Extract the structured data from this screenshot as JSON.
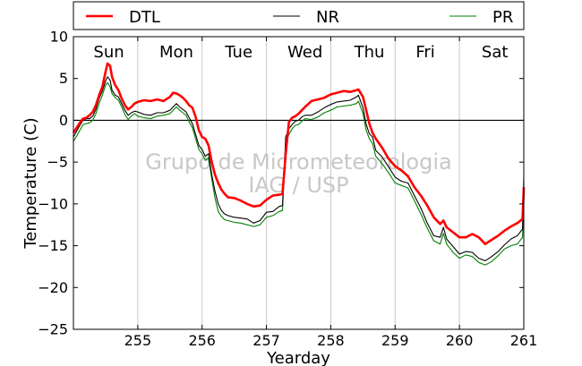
{
  "chart_data": {
    "type": "line",
    "xlabel": "Yearday",
    "ylabel": "Temperature (C)",
    "xlim": [
      254,
      261
    ],
    "ylim": [
      -25,
      10
    ],
    "xticks": [
      255,
      256,
      257,
      258,
      259,
      260,
      261
    ],
    "xtick_labels": [
      "255",
      "256",
      "257",
      "258",
      "259",
      "260",
      "261"
    ],
    "yticks": [
      -25,
      -20,
      -15,
      -10,
      -5,
      0,
      5,
      10
    ],
    "ytick_labels": [
      "−25",
      "−20",
      "−15",
      "−10",
      "−5",
      "0",
      "5",
      "10"
    ],
    "grid": "vertical",
    "zero_line": true,
    "legend": {
      "placement": "top",
      "entries": [
        "DTL",
        "NR",
        "PR"
      ]
    },
    "day_labels": [
      {
        "x": 254.55,
        "text": "Sun"
      },
      {
        "x": 255.6,
        "text": "Mon"
      },
      {
        "x": 256.57,
        "text": "Tue"
      },
      {
        "x": 257.6,
        "text": "Wed"
      },
      {
        "x": 258.6,
        "text": "Thu"
      },
      {
        "x": 259.47,
        "text": "Fri"
      },
      {
        "x": 260.55,
        "text": "Sat"
      }
    ],
    "watermark": [
      "Grupo de Micrometeorologia",
      "IAG / USP"
    ],
    "series": [
      {
        "name": "DTL",
        "color": "#ff0000",
        "x": [
          254,
          254.05,
          254.1,
          254.15,
          254.2,
          254.25,
          254.3,
          254.35,
          254.4,
          254.45,
          254.5,
          254.53,
          254.57,
          254.6,
          254.65,
          254.7,
          254.75,
          254.8,
          254.85,
          254.9,
          254.95,
          255,
          255.1,
          255.2,
          255.3,
          255.4,
          255.5,
          255.55,
          255.6,
          255.65,
          255.7,
          255.75,
          255.8,
          255.85,
          255.9,
          255.95,
          256,
          256.05,
          256.1,
          256.15,
          256.2,
          256.25,
          256.3,
          256.35,
          256.4,
          256.5,
          256.6,
          256.7,
          256.8,
          256.9,
          257,
          257.1,
          257.2,
          257.25,
          257.3,
          257.35,
          257.4,
          257.45,
          257.5,
          257.55,
          257.6,
          257.7,
          257.8,
          257.9,
          258,
          258.1,
          258.2,
          258.3,
          258.4,
          258.43,
          258.5,
          258.55,
          258.6,
          258.65,
          258.7,
          258.8,
          258.9,
          259,
          259.1,
          259.2,
          259.3,
          259.4,
          259.5,
          259.6,
          259.7,
          259.75,
          259.8,
          259.9,
          260,
          260.1,
          260.2,
          260.3,
          260.4,
          260.5,
          260.6,
          260.7,
          260.8,
          260.9,
          260.98,
          261
        ],
        "y": [
          -1.5,
          -0.9,
          -0.3,
          0.2,
          0.3,
          0.6,
          1.0,
          1.8,
          3.0,
          4.0,
          5.8,
          6.8,
          6.5,
          5.2,
          4.2,
          3.6,
          2.6,
          1.8,
          1.3,
          1.6,
          2.0,
          2.2,
          2.4,
          2.3,
          2.5,
          2.3,
          2.8,
          3.3,
          3.2,
          3.0,
          2.7,
          2.3,
          1.8,
          1.5,
          0.4,
          -1.2,
          -2.0,
          -2.2,
          -3.0,
          -5.0,
          -6.5,
          -7.5,
          -8.3,
          -8.8,
          -9.2,
          -9.3,
          -9.6,
          -10.0,
          -10.3,
          -10.2,
          -9.5,
          -9.0,
          -8.9,
          -8.8,
          -4.0,
          -0.2,
          0.3,
          0.5,
          0.8,
          1.2,
          1.6,
          2.3,
          2.5,
          2.7,
          3.1,
          3.3,
          3.5,
          3.4,
          3.6,
          3.7,
          2.8,
          1.2,
          -0.4,
          -1.5,
          -2.2,
          -3.3,
          -4.6,
          -5.5,
          -6.0,
          -6.7,
          -8.0,
          -9.0,
          -10.2,
          -11.6,
          -12.4,
          -12.0,
          -12.8,
          -13.4,
          -14.0,
          -14.0,
          -13.6,
          -14.0,
          -14.8,
          -14.3,
          -13.8,
          -13.2,
          -12.7,
          -12.3,
          -11.8,
          -8.0
        ]
      },
      {
        "name": "NR",
        "color": "#000000",
        "x": [
          254,
          254.05,
          254.1,
          254.15,
          254.2,
          254.25,
          254.3,
          254.35,
          254.4,
          254.45,
          254.5,
          254.53,
          254.57,
          254.6,
          254.65,
          254.7,
          254.75,
          254.8,
          254.85,
          254.9,
          254.95,
          255,
          255.1,
          255.2,
          255.3,
          255.4,
          255.5,
          255.55,
          255.6,
          255.65,
          255.7,
          255.75,
          255.8,
          255.85,
          255.9,
          255.95,
          256,
          256.05,
          256.1,
          256.15,
          256.2,
          256.25,
          256.3,
          256.35,
          256.4,
          256.5,
          256.6,
          256.7,
          256.8,
          256.9,
          257,
          257.1,
          257.2,
          257.25,
          257.3,
          257.35,
          257.4,
          257.45,
          257.5,
          257.55,
          257.6,
          257.7,
          257.8,
          257.9,
          258,
          258.1,
          258.2,
          258.3,
          258.4,
          258.43,
          258.5,
          258.55,
          258.6,
          258.65,
          258.7,
          258.8,
          258.9,
          259,
          259.1,
          259.2,
          259.3,
          259.4,
          259.5,
          259.6,
          259.7,
          259.75,
          259.8,
          259.9,
          260,
          260.1,
          260.2,
          260.3,
          260.4,
          260.5,
          260.6,
          260.7,
          260.8,
          260.9,
          260.98,
          261
        ],
        "y": [
          -2.0,
          -1.3,
          -0.6,
          0.0,
          0.2,
          0.2,
          0.5,
          1.3,
          2.6,
          3.5,
          4.7,
          5.2,
          4.8,
          3.6,
          3.0,
          2.8,
          2.0,
          1.2,
          0.6,
          0.9,
          1.1,
          1.0,
          0.7,
          0.6,
          0.9,
          0.9,
          1.2,
          1.6,
          2.0,
          1.6,
          1.3,
          1.0,
          0.3,
          -0.4,
          -1.7,
          -3.0,
          -3.5,
          -4.3,
          -4.0,
          -6.5,
          -8.5,
          -10.0,
          -10.8,
          -11.2,
          -11.4,
          -11.6,
          -11.7,
          -11.8,
          -12.3,
          -12.0,
          -11.0,
          -10.9,
          -10.3,
          -10.2,
          -2.0,
          -1.0,
          -0.5,
          -0.1,
          0.0,
          0.4,
          0.6,
          0.6,
          1.0,
          1.5,
          1.9,
          2.2,
          2.3,
          2.4,
          2.8,
          3.0,
          1.5,
          -0.5,
          -1.6,
          -2.0,
          -3.6,
          -4.4,
          -5.6,
          -6.8,
          -7.3,
          -7.5,
          -9.0,
          -10.5,
          -12.3,
          -13.8,
          -14.0,
          -12.8,
          -14.2,
          -15.1,
          -16.0,
          -15.7,
          -15.8,
          -16.5,
          -16.8,
          -16.3,
          -15.7,
          -14.9,
          -14.2,
          -13.8,
          -13.0,
          -6.8
        ]
      },
      {
        "name": "PR",
        "color": "#008000",
        "x": [
          254,
          254.05,
          254.1,
          254.15,
          254.2,
          254.25,
          254.3,
          254.35,
          254.4,
          254.45,
          254.5,
          254.53,
          254.57,
          254.6,
          254.65,
          254.7,
          254.75,
          254.8,
          254.85,
          254.9,
          254.95,
          255,
          255.1,
          255.2,
          255.3,
          255.4,
          255.5,
          255.55,
          255.6,
          255.65,
          255.7,
          255.75,
          255.8,
          255.85,
          255.9,
          255.95,
          256,
          256.05,
          256.1,
          256.15,
          256.2,
          256.25,
          256.3,
          256.35,
          256.4,
          256.5,
          256.6,
          256.7,
          256.8,
          256.9,
          257,
          257.1,
          257.2,
          257.25,
          257.3,
          257.35,
          257.4,
          257.45,
          257.5,
          257.55,
          257.6,
          257.7,
          257.8,
          257.9,
          258,
          258.1,
          258.2,
          258.3,
          258.4,
          258.43,
          258.5,
          258.55,
          258.6,
          258.65,
          258.7,
          258.8,
          258.9,
          259,
          259.1,
          259.2,
          259.3,
          259.4,
          259.5,
          259.6,
          259.7,
          259.75,
          259.8,
          259.9,
          260,
          260.1,
          260.2,
          260.3,
          260.4,
          260.5,
          260.6,
          260.7,
          260.8,
          260.9,
          260.98,
          261
        ],
        "y": [
          -2.5,
          -1.9,
          -1.2,
          -0.5,
          -0.4,
          -0.3,
          0.0,
          0.8,
          2.0,
          3.0,
          4.2,
          4.5,
          4.0,
          3.2,
          2.7,
          2.4,
          1.6,
          0.7,
          0.1,
          0.5,
          0.8,
          0.5,
          0.3,
          0.2,
          0.5,
          0.6,
          0.8,
          1.2,
          1.6,
          1.2,
          0.9,
          0.6,
          -0.2,
          -0.9,
          -2.2,
          -3.5,
          -4.0,
          -4.8,
          -4.5,
          -7.0,
          -9.3,
          -10.9,
          -11.5,
          -11.9,
          -12.0,
          -12.2,
          -12.3,
          -12.5,
          -12.7,
          -12.5,
          -11.6,
          -11.4,
          -10.9,
          -10.8,
          -2.5,
          -1.7,
          -1.0,
          -0.6,
          -0.5,
          -0.1,
          0.2,
          0.1,
          0.4,
          0.9,
          1.2,
          1.6,
          1.7,
          1.8,
          2.0,
          2.3,
          0.8,
          -1.2,
          -2.2,
          -2.8,
          -4.3,
          -5.2,
          -6.3,
          -7.5,
          -7.8,
          -8.1,
          -9.6,
          -11.2,
          -12.9,
          -14.4,
          -14.8,
          -13.5,
          -14.8,
          -15.8,
          -16.5,
          -16.1,
          -16.3,
          -17.0,
          -17.3,
          -16.9,
          -16.2,
          -15.4,
          -15.0,
          -14.8,
          -14.0,
          -8.8
        ]
      }
    ]
  }
}
